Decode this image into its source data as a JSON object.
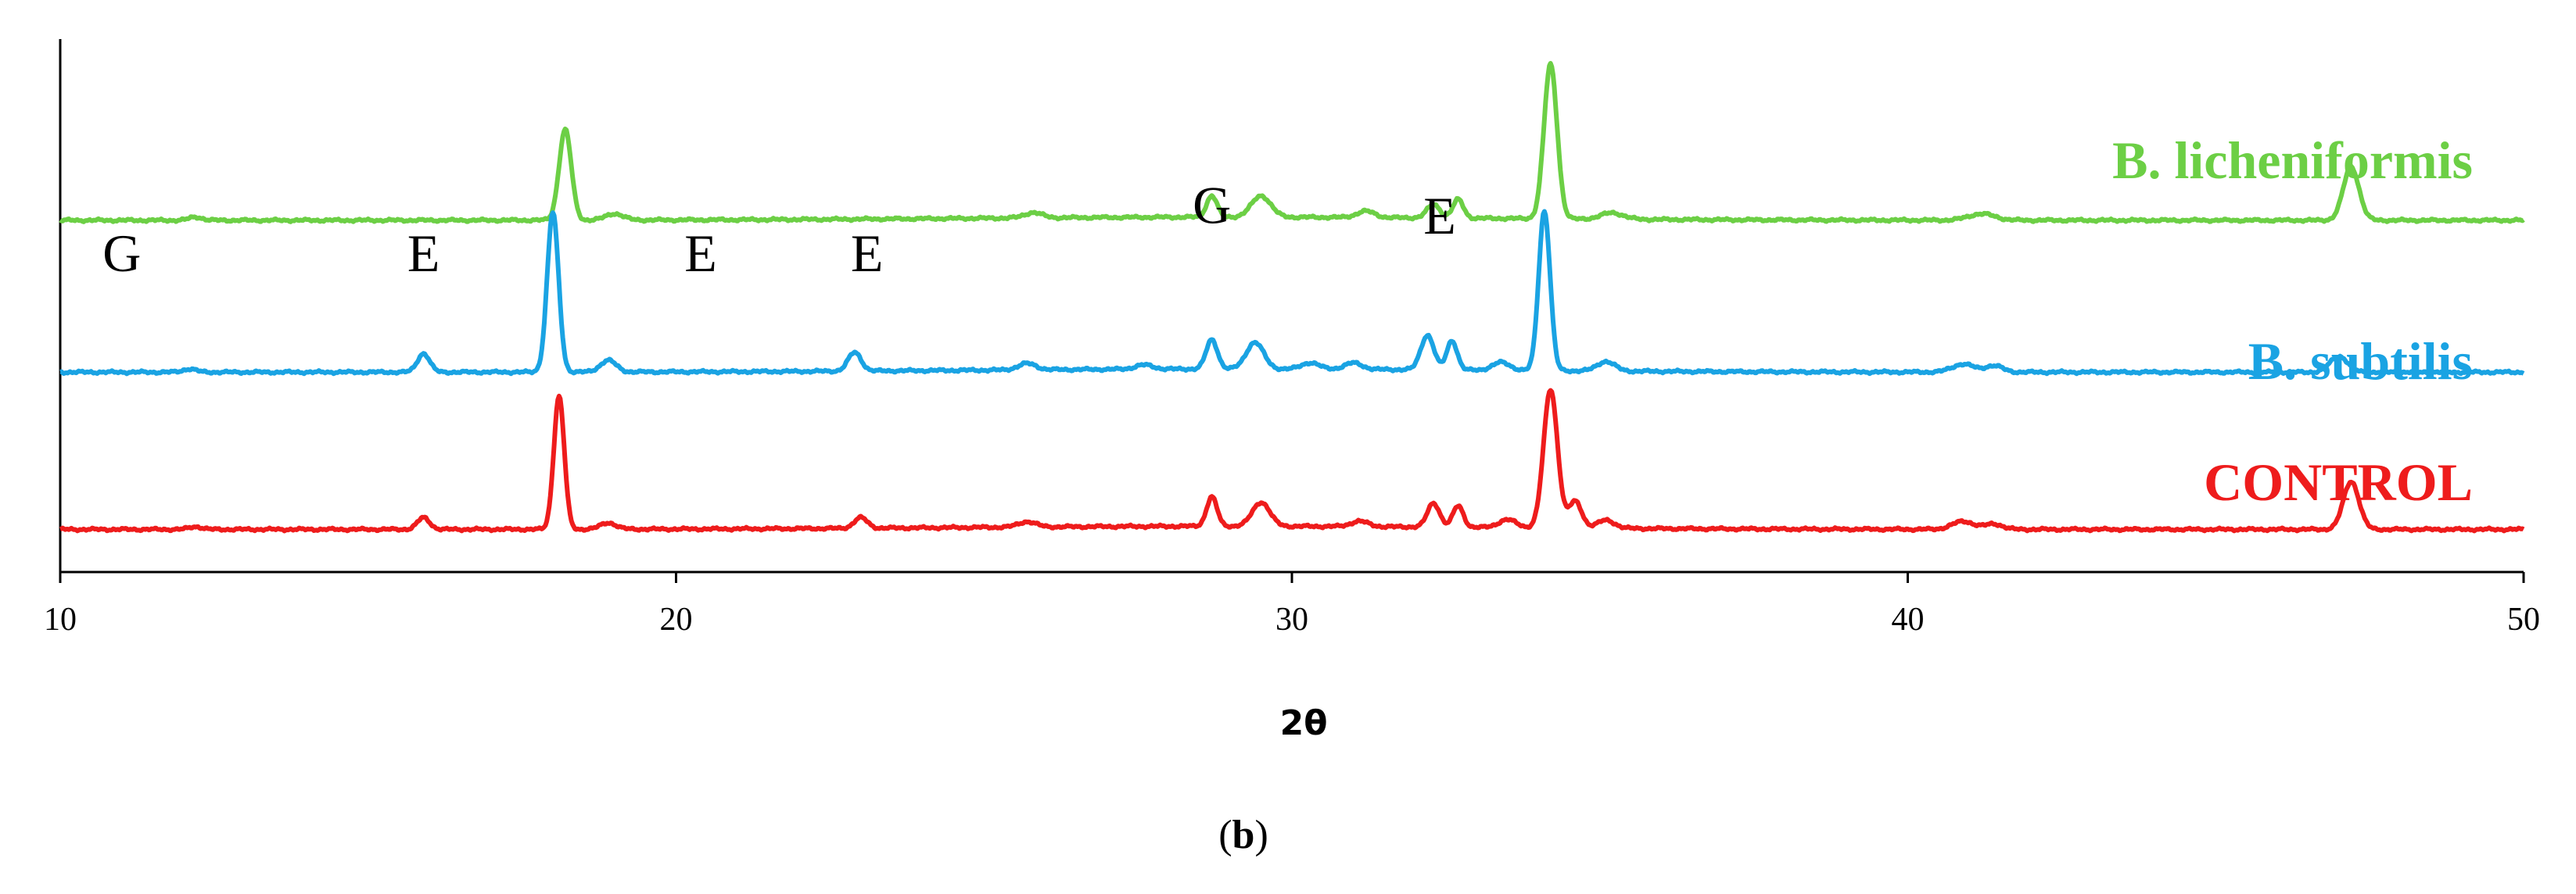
{
  "chart_data": {
    "type": "line",
    "xlabel": "2θ",
    "ylabel": "",
    "xlim": [
      10,
      50
    ],
    "x_ticks": [
      10,
      20,
      30,
      40,
      50
    ],
    "grid": false,
    "panel_label": "(b)",
    "series": [
      {
        "name": "B. licheniformis",
        "color": "#6ccf45",
        "baseline": 0.66,
        "peaks": [
          {
            "x": 12.2,
            "h": 0.006,
            "w": 0.15
          },
          {
            "x": 18.2,
            "h": 0.17,
            "w": 0.14
          },
          {
            "x": 19.0,
            "h": 0.012,
            "w": 0.2
          },
          {
            "x": 25.8,
            "h": 0.01,
            "w": 0.2
          },
          {
            "x": 28.7,
            "h": 0.04,
            "w": 0.12
          },
          {
            "x": 29.5,
            "h": 0.04,
            "w": 0.22
          },
          {
            "x": 31.2,
            "h": 0.012,
            "w": 0.2
          },
          {
            "x": 32.3,
            "h": 0.025,
            "w": 0.15
          },
          {
            "x": 32.7,
            "h": 0.035,
            "w": 0.12
          },
          {
            "x": 34.2,
            "h": 0.29,
            "w": 0.15
          },
          {
            "x": 35.2,
            "h": 0.012,
            "w": 0.25
          },
          {
            "x": 41.2,
            "h": 0.012,
            "w": 0.3
          },
          {
            "x": 47.2,
            "h": 0.1,
            "w": 0.18
          }
        ]
      },
      {
        "name": "B. subtilis",
        "color": "#1aa3e3",
        "baseline": 0.375,
        "peaks": [
          {
            "x": 12.1,
            "h": 0.006,
            "w": 0.15
          },
          {
            "x": 15.9,
            "h": 0.035,
            "w": 0.14
          },
          {
            "x": 18.0,
            "h": 0.3,
            "w": 0.13
          },
          {
            "x": 18.9,
            "h": 0.022,
            "w": 0.18
          },
          {
            "x": 22.9,
            "h": 0.035,
            "w": 0.15
          },
          {
            "x": 25.7,
            "h": 0.012,
            "w": 0.2
          },
          {
            "x": 27.6,
            "h": 0.008,
            "w": 0.2
          },
          {
            "x": 28.7,
            "h": 0.055,
            "w": 0.13
          },
          {
            "x": 29.4,
            "h": 0.05,
            "w": 0.2
          },
          {
            "x": 30.3,
            "h": 0.012,
            "w": 0.2
          },
          {
            "x": 31.0,
            "h": 0.012,
            "w": 0.2
          },
          {
            "x": 32.2,
            "h": 0.065,
            "w": 0.15
          },
          {
            "x": 32.6,
            "h": 0.055,
            "w": 0.12
          },
          {
            "x": 33.4,
            "h": 0.015,
            "w": 0.2
          },
          {
            "x": 34.1,
            "h": 0.3,
            "w": 0.13
          },
          {
            "x": 35.1,
            "h": 0.018,
            "w": 0.2
          },
          {
            "x": 40.9,
            "h": 0.015,
            "w": 0.25
          },
          {
            "x": 41.4,
            "h": 0.012,
            "w": 0.2
          },
          {
            "x": 47.0,
            "h": 0.03,
            "w": 0.2
          }
        ]
      },
      {
        "name": "CONTROL",
        "color": "#ee1c1c",
        "baseline": 0.08,
        "peaks": [
          {
            "x": 12.2,
            "h": 0.005,
            "w": 0.15
          },
          {
            "x": 15.9,
            "h": 0.022,
            "w": 0.14
          },
          {
            "x": 18.1,
            "h": 0.25,
            "w": 0.12
          },
          {
            "x": 18.9,
            "h": 0.012,
            "w": 0.18
          },
          {
            "x": 23.0,
            "h": 0.02,
            "w": 0.15
          },
          {
            "x": 25.7,
            "h": 0.01,
            "w": 0.2
          },
          {
            "x": 28.7,
            "h": 0.055,
            "w": 0.12
          },
          {
            "x": 29.5,
            "h": 0.045,
            "w": 0.2
          },
          {
            "x": 31.1,
            "h": 0.01,
            "w": 0.2
          },
          {
            "x": 32.3,
            "h": 0.045,
            "w": 0.14
          },
          {
            "x": 32.7,
            "h": 0.04,
            "w": 0.12
          },
          {
            "x": 33.5,
            "h": 0.015,
            "w": 0.2
          },
          {
            "x": 34.2,
            "h": 0.26,
            "w": 0.16
          },
          {
            "x": 34.6,
            "h": 0.05,
            "w": 0.15
          },
          {
            "x": 35.1,
            "h": 0.015,
            "w": 0.2
          },
          {
            "x": 40.9,
            "h": 0.015,
            "w": 0.25
          },
          {
            "x": 41.4,
            "h": 0.01,
            "w": 0.2
          },
          {
            "x": 47.2,
            "h": 0.09,
            "w": 0.18
          }
        ]
      }
    ],
    "annotations": [
      {
        "text": "G",
        "x": 11.0,
        "level": 0.6
      },
      {
        "text": "E",
        "x": 15.9,
        "level": 0.6
      },
      {
        "text": "E",
        "x": 20.4,
        "level": 0.6
      },
      {
        "text": "E",
        "x": 23.1,
        "level": 0.6
      },
      {
        "text": "G",
        "x": 28.7,
        "level": 0.69
      },
      {
        "text": "E",
        "x": 32.4,
        "level": 0.67
      }
    ]
  }
}
